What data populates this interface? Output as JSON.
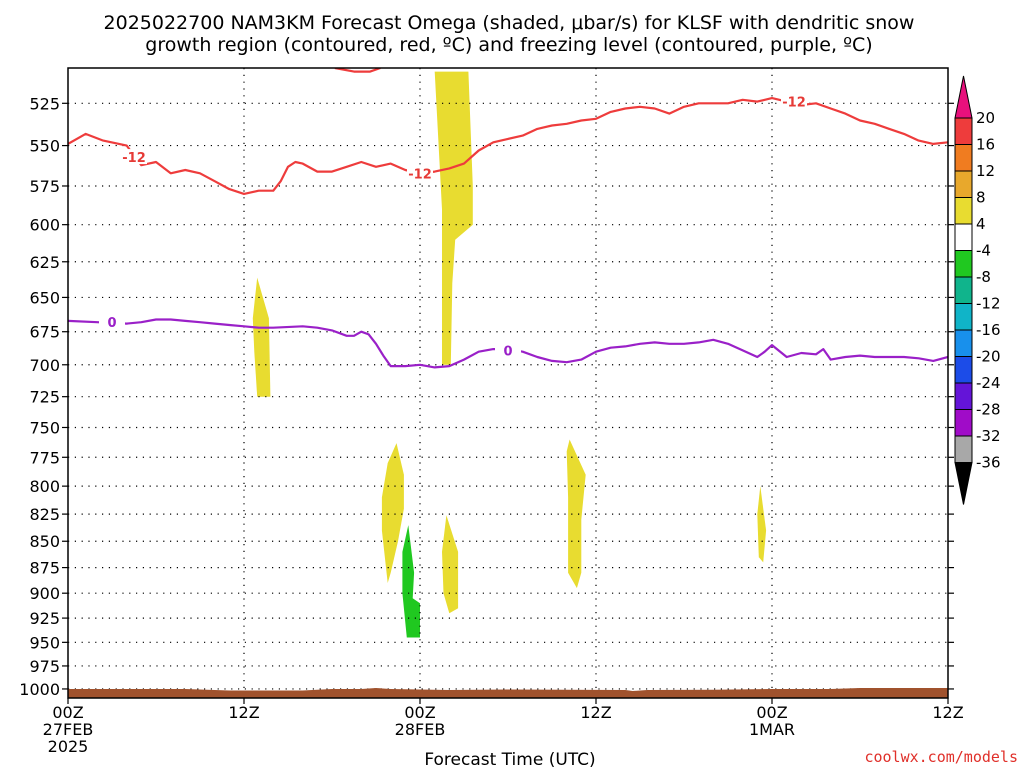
{
  "chart_data": {
    "type": "heatmap",
    "title_lines": [
      "2025022700 NAM3KM Forecast Omega (shaded, μbar/s) for KLSF with dendritic snow",
      "growth region (contoured, red, ºC) and freezing level (contoured, purple, ºC)"
    ],
    "xlabel": "Forecast Time (UTC)",
    "credit": "coolwx.com/models",
    "x_ticks": [
      {
        "hour": 0,
        "lines": [
          "00Z",
          "27FEB",
          "2025"
        ]
      },
      {
        "hour": 12,
        "lines": [
          "12Z"
        ]
      },
      {
        "hour": 24,
        "lines": [
          "00Z",
          "28FEB"
        ]
      },
      {
        "hour": 36,
        "lines": [
          "12Z"
        ]
      },
      {
        "hour": 48,
        "lines": [
          "00Z",
          "1MAR"
        ]
      },
      {
        "hour": 60,
        "lines": [
          "12Z"
        ]
      }
    ],
    "xlim": [
      0,
      60
    ],
    "y_ticks": [
      "525",
      "550",
      "575",
      "600",
      "625",
      "650",
      "675",
      "700",
      "725",
      "750",
      "775",
      "800",
      "825",
      "850",
      "875",
      "900",
      "925",
      "950",
      "975",
      "1000"
    ],
    "ylim": [
      505,
      1010
    ],
    "y_scale": "log",
    "y_inverted": true,
    "grid": true,
    "colorbar": {
      "ticks": [
        "20",
        "16",
        "12",
        "8",
        "4",
        "-4",
        "-8",
        "-12",
        "-16",
        "-20",
        "-24",
        "-28",
        "-32",
        "-36"
      ],
      "bins": [
        {
          "lo": 20,
          "hi": null,
          "color": "#e8107c"
        },
        {
          "lo": 16,
          "hi": 20,
          "color": "#ee3c3c"
        },
        {
          "lo": 12,
          "hi": 16,
          "color": "#f07c20"
        },
        {
          "lo": 8,
          "hi": 12,
          "color": "#e8a82c"
        },
        {
          "lo": 4,
          "hi": 8,
          "color": "#e8dc30"
        },
        {
          "lo": -4,
          "hi": 4,
          "color": "#ffffff"
        },
        {
          "lo": -8,
          "hi": -4,
          "color": "#20c820"
        },
        {
          "lo": -12,
          "hi": -8,
          "color": "#10b48c"
        },
        {
          "lo": -16,
          "hi": -12,
          "color": "#10b4c8"
        },
        {
          "lo": -20,
          "hi": -16,
          "color": "#1890ec"
        },
        {
          "lo": -24,
          "hi": -20,
          "color": "#1c4ce8"
        },
        {
          "lo": -28,
          "hi": -24,
          "color": "#6414d8"
        },
        {
          "lo": -32,
          "hi": -28,
          "color": "#a00cc8"
        },
        {
          "lo": -36,
          "hi": -32,
          "color": "#a8a8a8"
        },
        {
          "lo": null,
          "hi": -36,
          "color": "#000000"
        }
      ]
    },
    "omega_regions": [
      {
        "value_bin": "4 to 8",
        "color": "#e8dc30",
        "points": [
          [
            25.0,
            507
          ],
          [
            27.3,
            507
          ],
          [
            27.6,
            575
          ],
          [
            27.6,
            600
          ],
          [
            26.4,
            610
          ],
          [
            26.2,
            640
          ],
          [
            26.1,
            700
          ],
          [
            25.5,
            700
          ],
          [
            25.5,
            590
          ]
        ]
      },
      {
        "value_bin": "4 to 8",
        "color": "#e8dc30",
        "points": [
          [
            12.9,
            636
          ],
          [
            13.7,
            665
          ],
          [
            13.8,
            725
          ],
          [
            12.9,
            725
          ],
          [
            12.7,
            690
          ],
          [
            12.6,
            665
          ]
        ]
      },
      {
        "value_bin": "4 to 8",
        "color": "#e8dc30",
        "points": [
          [
            22.4,
            763
          ],
          [
            22.9,
            790
          ],
          [
            22.9,
            820
          ],
          [
            22.5,
            850
          ],
          [
            22.0,
            880
          ],
          [
            21.8,
            890
          ],
          [
            21.4,
            840
          ],
          [
            21.4,
            810
          ],
          [
            21.8,
            780
          ]
        ]
      },
      {
        "value_bin": "4 to 8",
        "color": "#e8dc30",
        "points": [
          [
            25.8,
            826
          ],
          [
            26.6,
            860
          ],
          [
            26.6,
            915
          ],
          [
            26.0,
            920
          ],
          [
            25.6,
            900
          ],
          [
            25.5,
            860
          ]
        ]
      },
      {
        "value_bin": "4 to 8",
        "color": "#e8dc30",
        "points": [
          [
            34.2,
            760
          ],
          [
            35.3,
            790
          ],
          [
            35.0,
            830
          ],
          [
            35.0,
            880
          ],
          [
            34.7,
            895
          ],
          [
            34.1,
            880
          ],
          [
            34.1,
            810
          ],
          [
            34.0,
            770
          ]
        ]
      },
      {
        "value_bin": "4 to 8",
        "color": "#e8dc30",
        "points": [
          [
            47.2,
            800
          ],
          [
            47.6,
            840
          ],
          [
            47.4,
            870
          ],
          [
            47.1,
            865
          ],
          [
            47.0,
            825
          ]
        ]
      },
      {
        "value_bin": "-8 to -4",
        "color": "#20c820",
        "points": [
          [
            23.2,
            835
          ],
          [
            23.6,
            880
          ],
          [
            23.5,
            905
          ],
          [
            24.0,
            910
          ],
          [
            24.0,
            945
          ],
          [
            23.1,
            945
          ],
          [
            22.8,
            900
          ],
          [
            22.8,
            860
          ]
        ]
      }
    ],
    "dendritic_contour": {
      "label": "-12",
      "color": "#ee3c3c",
      "points": [
        [
          0,
          549
        ],
        [
          1.2,
          543
        ],
        [
          2.4,
          547
        ],
        [
          4,
          550
        ],
        [
          5,
          562
        ],
        [
          6,
          560
        ],
        [
          7,
          567
        ],
        [
          8,
          565
        ],
        [
          9,
          567
        ],
        [
          10,
          572
        ],
        [
          11,
          577
        ],
        [
          12,
          580
        ],
        [
          13,
          578
        ],
        [
          14,
          578
        ],
        [
          14.5,
          572
        ],
        [
          15,
          563
        ],
        [
          15.5,
          560
        ],
        [
          16,
          561
        ],
        [
          17,
          566
        ],
        [
          18,
          566
        ],
        [
          19,
          563
        ],
        [
          20,
          560
        ],
        [
          21,
          563
        ],
        [
          22,
          561
        ],
        [
          23,
          565
        ],
        [
          24,
          567
        ],
        [
          25,
          566
        ],
        [
          26,
          564
        ],
        [
          27,
          561
        ],
        [
          28,
          553
        ],
        [
          29,
          548
        ],
        [
          30,
          546
        ],
        [
          31,
          544
        ],
        [
          32,
          540
        ],
        [
          33,
          538
        ],
        [
          34,
          537
        ],
        [
          35,
          535
        ],
        [
          36,
          534
        ],
        [
          37,
          530
        ],
        [
          38,
          528
        ],
        [
          39,
          527
        ],
        [
          40,
          528
        ],
        [
          41,
          531
        ],
        [
          42,
          527
        ],
        [
          43,
          525
        ],
        [
          44,
          525
        ],
        [
          45,
          525
        ],
        [
          46,
          523
        ],
        [
          47,
          524
        ],
        [
          48,
          522
        ],
        [
          49,
          524
        ],
        [
          50,
          526
        ],
        [
          51,
          525
        ],
        [
          52,
          528
        ],
        [
          53,
          531
        ],
        [
          54,
          535
        ],
        [
          55,
          537
        ],
        [
          56,
          540
        ],
        [
          57,
          543
        ],
        [
          58,
          547
        ],
        [
          59,
          549
        ],
        [
          60,
          548
        ]
      ]
    },
    "dendritic_top_fragment": {
      "color": "#ee3c3c",
      "points": [
        [
          18.2,
          505
        ],
        [
          19.5,
          507
        ],
        [
          20.6,
          507
        ],
        [
          21.3,
          505
        ]
      ]
    },
    "freezing_contour": {
      "label": "0",
      "color": "#9a20c8",
      "points": [
        [
          0,
          667
        ],
        [
          2,
          668
        ],
        [
          4,
          669
        ],
        [
          5,
          668
        ],
        [
          6,
          666
        ],
        [
          7,
          666
        ],
        [
          8,
          667
        ],
        [
          9,
          668
        ],
        [
          10,
          669
        ],
        [
          11,
          670
        ],
        [
          12,
          671
        ],
        [
          13,
          672
        ],
        [
          14,
          672
        ],
        [
          16,
          671
        ],
        [
          17,
          672
        ],
        [
          18,
          674
        ],
        [
          19,
          678
        ],
        [
          19.5,
          678
        ],
        [
          20,
          675
        ],
        [
          20.5,
          677
        ],
        [
          21,
          684
        ],
        [
          21.5,
          693
        ],
        [
          22,
          701
        ],
        [
          23,
          701
        ],
        [
          24,
          700
        ],
        [
          25,
          702
        ],
        [
          26,
          701
        ],
        [
          27,
          696
        ],
        [
          28,
          690
        ],
        [
          29,
          688
        ],
        [
          30,
          688
        ],
        [
          31,
          690
        ],
        [
          32,
          694
        ],
        [
          33,
          697
        ],
        [
          34,
          698
        ],
        [
          35,
          696
        ],
        [
          36,
          690
        ],
        [
          37,
          687
        ],
        [
          38,
          686
        ],
        [
          39,
          684
        ],
        [
          40,
          683
        ],
        [
          41,
          684
        ],
        [
          42,
          684
        ],
        [
          43,
          683
        ],
        [
          44,
          681
        ],
        [
          45,
          684
        ],
        [
          46,
          689
        ],
        [
          47,
          694
        ],
        [
          47.5,
          690
        ],
        [
          48,
          685
        ],
        [
          49,
          694
        ],
        [
          50,
          691
        ],
        [
          51,
          692
        ],
        [
          51.5,
          688
        ],
        [
          52,
          696
        ],
        [
          53,
          694
        ],
        [
          54,
          693
        ],
        [
          55,
          694
        ],
        [
          56,
          694
        ],
        [
          57,
          694
        ],
        [
          58,
          695
        ],
        [
          59,
          697
        ],
        [
          60,
          694
        ]
      ]
    },
    "terrain": {
      "color": "#a0522d",
      "pressure_level": 1000
    }
  }
}
